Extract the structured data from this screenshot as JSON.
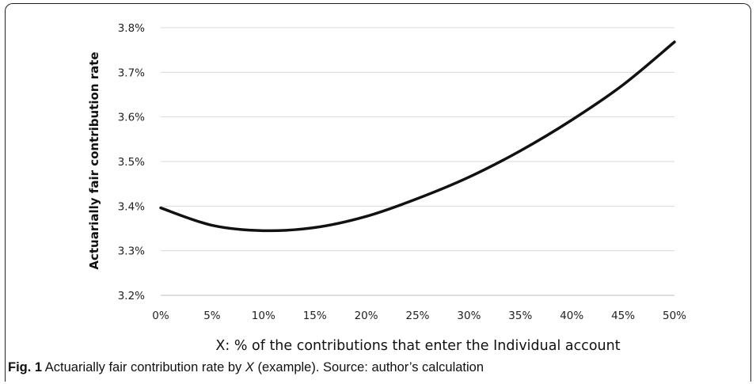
{
  "chart_data": {
    "type": "line",
    "xlabel": "X: % of the contributions that enter the Individual account",
    "ylabel": "Actuarially fair contribution rate",
    "x_ticks": [
      "0%",
      "5%",
      "10%",
      "15%",
      "20%",
      "25%",
      "30%",
      "35%",
      "40%",
      "45%",
      "50%"
    ],
    "y_ticks": [
      "3.2%",
      "3.3%",
      "3.4%",
      "3.5%",
      "3.6%",
      "3.7%",
      "3.8%"
    ],
    "xlim": [
      0,
      50
    ],
    "ylim": [
      3.2,
      3.8
    ],
    "grid": "horizontal",
    "series": [
      {
        "x": [
          0,
          5,
          10,
          15,
          20,
          25,
          30,
          35,
          40,
          45,
          50
        ],
        "y": [
          3.396,
          3.357,
          3.345,
          3.352,
          3.377,
          3.417,
          3.465,
          3.524,
          3.593,
          3.672,
          3.768
        ],
        "color": "#111111"
      }
    ]
  },
  "caption": {
    "fig_label": "Fig. 1",
    "text_before": " Actuarially fair contribution rate by ",
    "variable": "X",
    "text_after": " (example). Source: author’s calculation"
  }
}
